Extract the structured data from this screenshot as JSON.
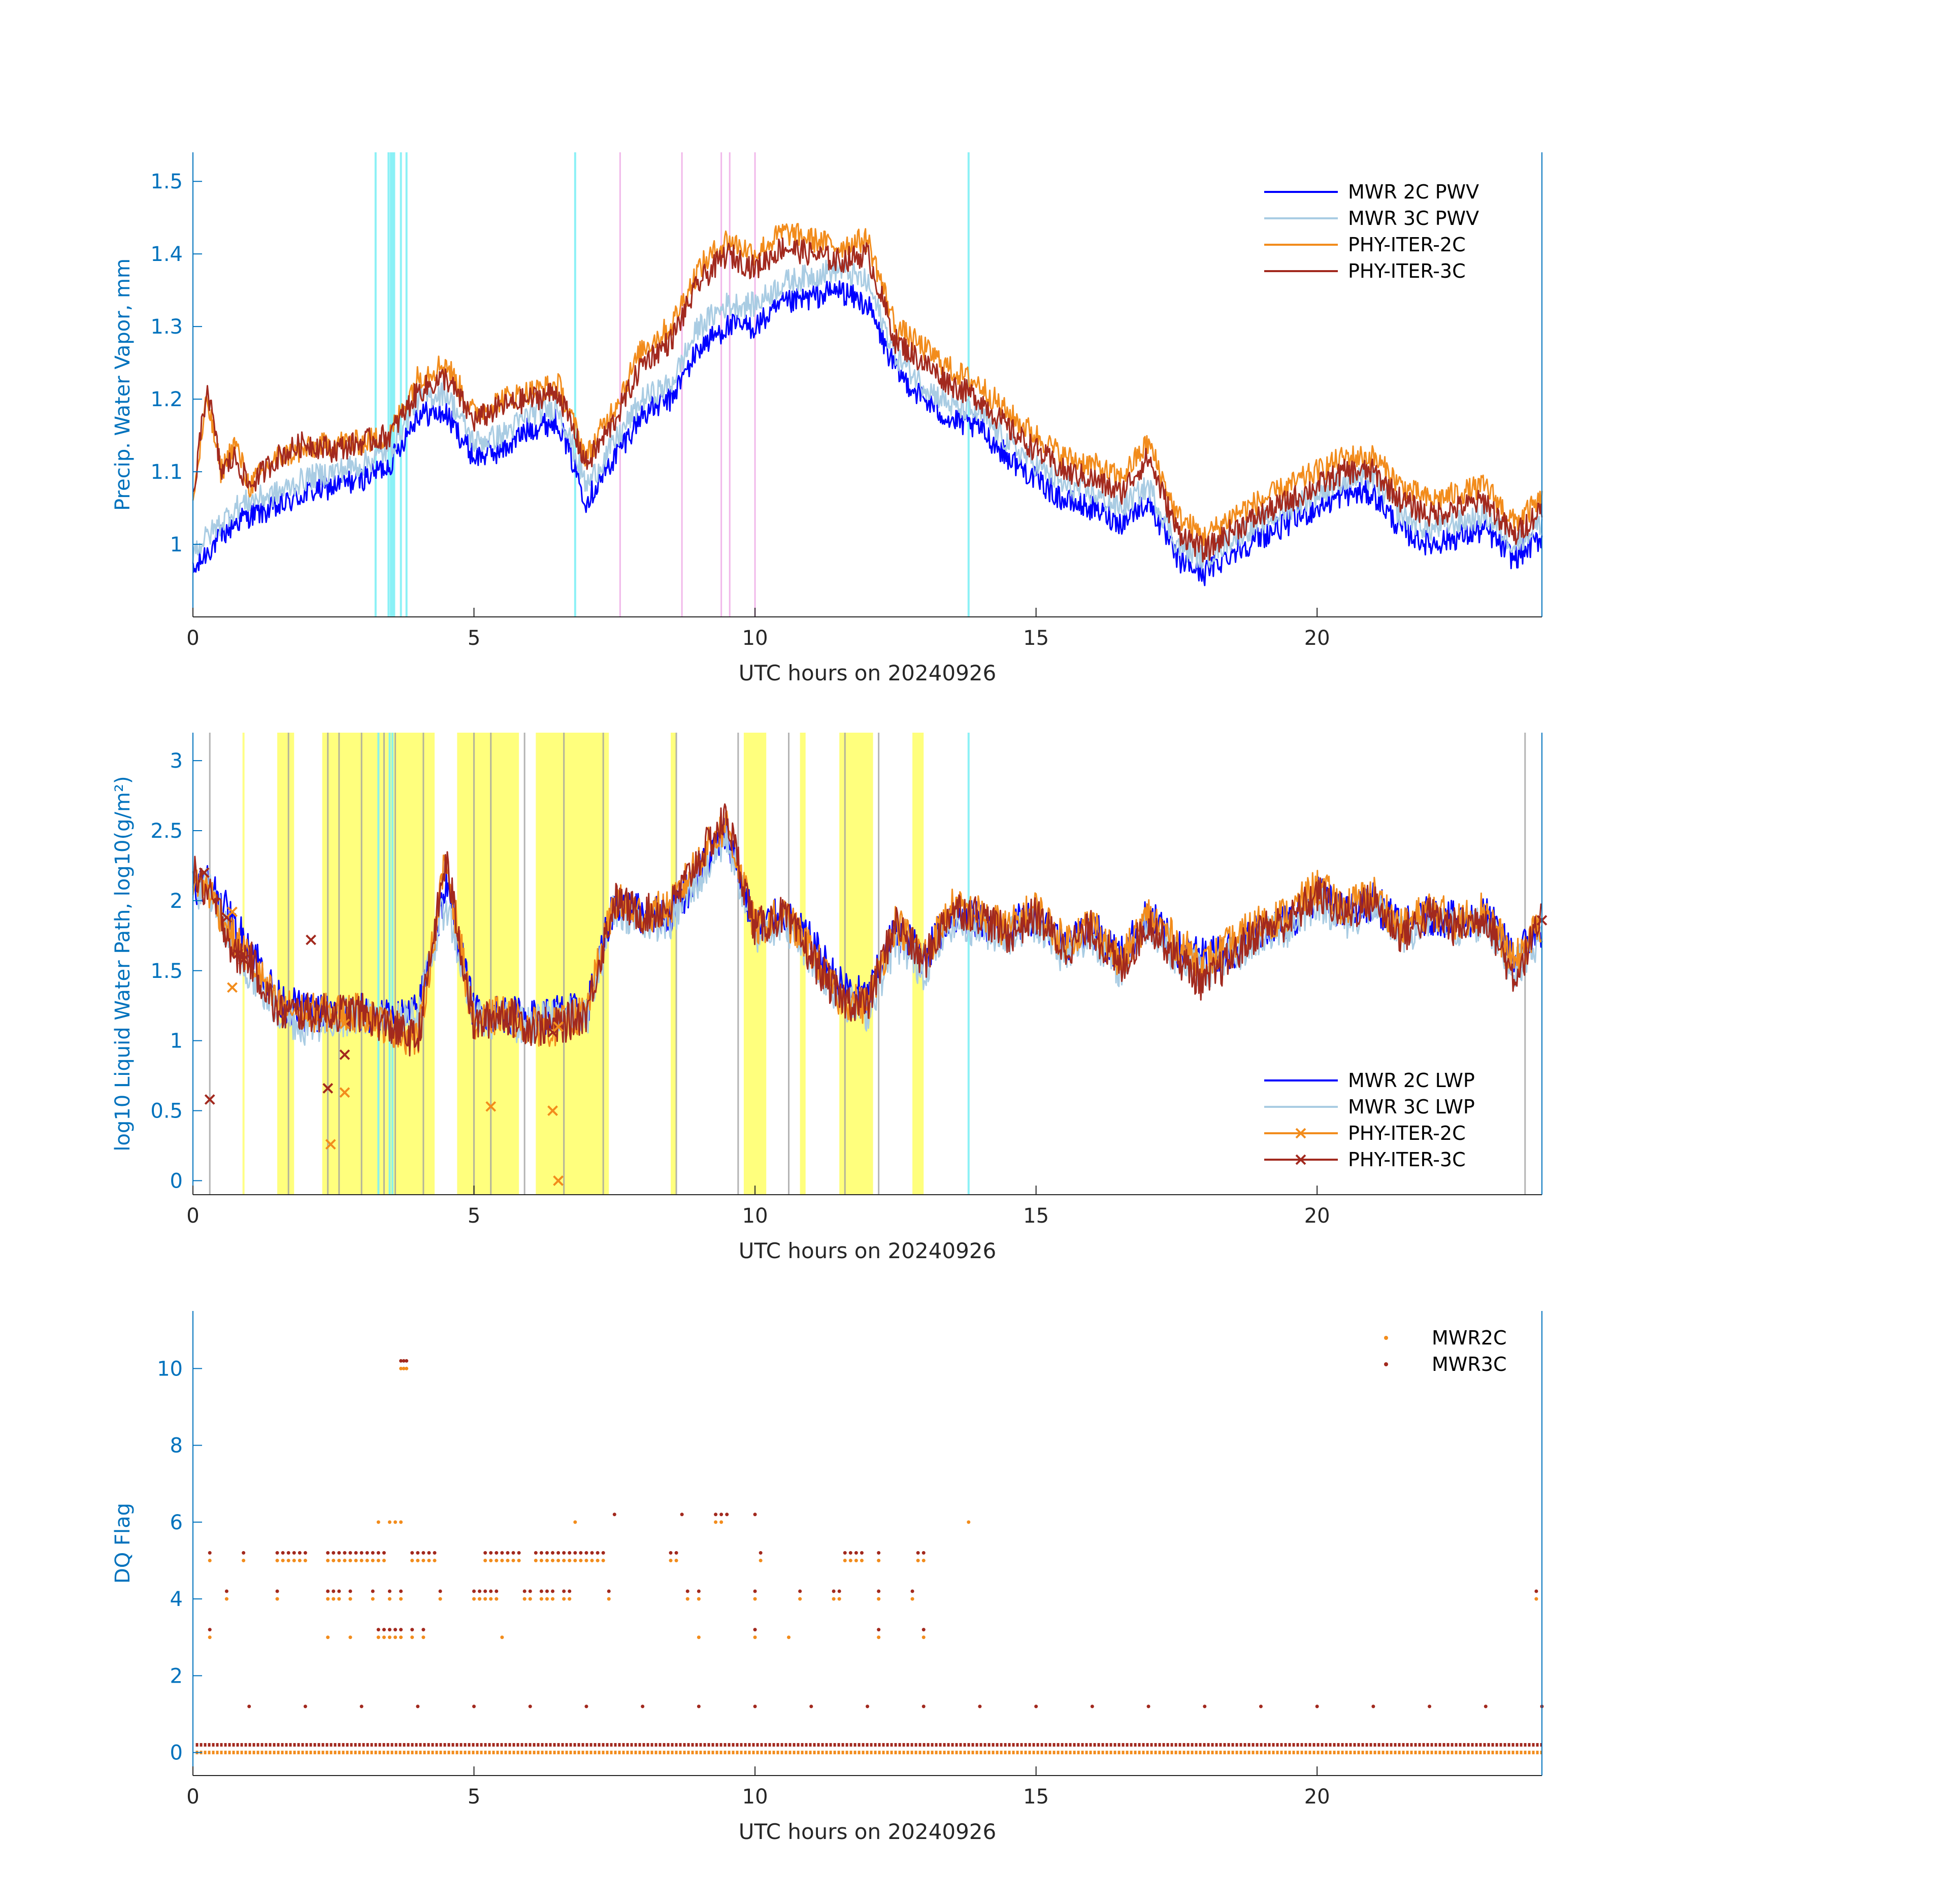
{
  "chart_data": [
    {
      "type": "line",
      "id": "pwv",
      "xlabel": "UTC hours on 20240926",
      "ylabel": "Precip. Water Vapor, mm",
      "xlim": [
        0,
        24
      ],
      "ylim": [
        0.9,
        1.54
      ],
      "xticks": [
        0,
        5,
        10,
        15,
        20
      ],
      "yticks": [
        1,
        1.1,
        1.2,
        1.3,
        1.4,
        1.5
      ],
      "ytick_labels": [
        "1",
        "1.1",
        "1.2",
        "1.3",
        "1.4",
        "1.5"
      ],
      "legend_location": "top-right",
      "x": [
        0,
        0.25,
        0.5,
        0.75,
        1,
        1.5,
        2,
        2.5,
        3,
        3.5,
        4,
        4.5,
        5,
        5.5,
        6,
        6.5,
        7,
        7.5,
        8,
        8.5,
        9,
        9.5,
        10,
        10.5,
        11,
        11.5,
        12,
        12.5,
        13,
        13.5,
        14,
        14.5,
        15,
        15.5,
        16,
        16.5,
        17,
        17.5,
        18,
        18.5,
        19,
        19.5,
        20,
        20.5,
        21,
        21.5,
        22,
        22.5,
        23,
        23.5,
        24
      ],
      "series": [
        {
          "name": "MWR 2C PWV",
          "color": "#0000FF",
          "width": 3,
          "values": [
            0.96,
            0.99,
            1.01,
            1.03,
            1.04,
            1.05,
            1.07,
            1.08,
            1.09,
            1.11,
            1.18,
            1.18,
            1.12,
            1.13,
            1.16,
            1.17,
            1.06,
            1.12,
            1.18,
            1.2,
            1.27,
            1.3,
            1.3,
            1.33,
            1.34,
            1.35,
            1.33,
            1.24,
            1.2,
            1.17,
            1.16,
            1.12,
            1.09,
            1.06,
            1.05,
            1.03,
            1.06,
            0.98,
            0.96,
            0.99,
            1.01,
            1.03,
            1.05,
            1.07,
            1.07,
            1.02,
            1.0,
            1.01,
            1.02,
            0.98,
            1.01
          ]
        },
        {
          "name": "MWR 3C PWV",
          "color": "#A9CCE3",
          "width": 3,
          "values": [
            0.99,
            1.01,
            1.03,
            1.05,
            1.06,
            1.07,
            1.09,
            1.1,
            1.11,
            1.13,
            1.2,
            1.21,
            1.14,
            1.15,
            1.18,
            1.19,
            1.08,
            1.14,
            1.2,
            1.22,
            1.3,
            1.33,
            1.33,
            1.36,
            1.37,
            1.38,
            1.36,
            1.26,
            1.22,
            1.19,
            1.18,
            1.14,
            1.11,
            1.08,
            1.07,
            1.05,
            1.08,
            1.0,
            0.98,
            1.01,
            1.03,
            1.05,
            1.07,
            1.09,
            1.09,
            1.04,
            1.02,
            1.03,
            1.04,
            1.0,
            1.03
          ]
        },
        {
          "name": "PHY-ITER-2C",
          "color": "#F28C1C",
          "width": 3,
          "values": [
            1.06,
            1.2,
            1.1,
            1.14,
            1.08,
            1.12,
            1.13,
            1.14,
            1.14,
            1.15,
            1.23,
            1.25,
            1.18,
            1.2,
            1.21,
            1.22,
            1.12,
            1.19,
            1.27,
            1.3,
            1.38,
            1.42,
            1.4,
            1.43,
            1.42,
            1.41,
            1.42,
            1.3,
            1.27,
            1.24,
            1.22,
            1.18,
            1.15,
            1.12,
            1.11,
            1.09,
            1.14,
            1.04,
            1.01,
            1.04,
            1.06,
            1.08,
            1.1,
            1.12,
            1.12,
            1.08,
            1.06,
            1.07,
            1.08,
            1.03,
            1.06
          ]
        },
        {
          "name": "PHY-ITER-3C",
          "color": "#A2291E",
          "width": 3,
          "values": [
            1.06,
            1.22,
            1.1,
            1.12,
            1.08,
            1.12,
            1.14,
            1.13,
            1.14,
            1.15,
            1.21,
            1.23,
            1.17,
            1.19,
            1.2,
            1.21,
            1.11,
            1.17,
            1.25,
            1.28,
            1.36,
            1.4,
            1.38,
            1.41,
            1.4,
            1.39,
            1.4,
            1.28,
            1.25,
            1.22,
            1.2,
            1.16,
            1.13,
            1.1,
            1.09,
            1.07,
            1.12,
            1.02,
            0.99,
            1.02,
            1.04,
            1.06,
            1.08,
            1.1,
            1.1,
            1.06,
            1.04,
            1.05,
            1.06,
            1.01,
            1.05
          ]
        }
      ]
    },
    {
      "type": "line",
      "id": "lwp",
      "xlabel": "UTC hours on 20240926",
      "ylabel": "log10 Liquid Water Path, log10(g/m²)",
      "xlim": [
        0,
        24
      ],
      "ylim": [
        -0.1,
        3.2
      ],
      "xticks": [
        0,
        5,
        10,
        15,
        20
      ],
      "yticks": [
        0,
        0.5,
        1,
        1.5,
        2,
        2.5,
        3
      ],
      "ytick_labels": [
        "0",
        "0.5",
        "1",
        "1.5",
        "2",
        "2.5",
        "3"
      ],
      "legend_location": "bottom-right",
      "x": [
        0,
        0.25,
        0.5,
        0.75,
        1,
        1.5,
        2,
        2.5,
        3,
        3.5,
        4,
        4.5,
        5,
        5.5,
        6,
        6.5,
        7,
        7.5,
        8,
        8.5,
        9,
        9.5,
        10,
        10.5,
        11,
        11.5,
        12,
        12.5,
        13,
        13.5,
        14,
        14.5,
        15,
        15.5,
        16,
        16.5,
        17,
        17.5,
        18,
        18.5,
        19,
        19.5,
        20,
        20.5,
        21,
        21.5,
        22,
        22.5,
        23,
        23.5,
        24
      ],
      "series": [
        {
          "name": "MWR 2C LWP",
          "color": "#0000FF",
          "width": 3,
          "marker": "",
          "values": [
            2.1,
            2.15,
            2.0,
            1.8,
            1.7,
            1.3,
            1.2,
            1.2,
            1.2,
            1.15,
            1.2,
            2.1,
            1.2,
            1.2,
            1.15,
            1.2,
            1.2,
            2.0,
            1.9,
            1.9,
            2.2,
            2.5,
            1.8,
            1.9,
            1.7,
            1.4,
            1.3,
            1.8,
            1.6,
            1.9,
            1.85,
            1.8,
            1.9,
            1.7,
            1.8,
            1.6,
            1.9,
            1.65,
            1.6,
            1.65,
            1.8,
            1.85,
            2.05,
            1.9,
            2.0,
            1.8,
            1.9,
            1.85,
            1.9,
            1.6,
            1.8
          ]
        },
        {
          "name": "MWR 3C LWP",
          "color": "#A9CCE3",
          "width": 3,
          "marker": "",
          "values": [
            2.05,
            2.1,
            1.9,
            1.6,
            1.5,
            1.2,
            1.1,
            1.15,
            1.2,
            1.1,
            1.2,
            2.0,
            1.15,
            1.15,
            1.1,
            1.2,
            1.15,
            1.95,
            1.85,
            1.85,
            2.15,
            2.45,
            1.75,
            1.85,
            1.6,
            1.3,
            1.2,
            1.7,
            1.5,
            1.85,
            1.8,
            1.75,
            1.85,
            1.6,
            1.75,
            1.5,
            1.85,
            1.6,
            1.5,
            1.6,
            1.75,
            1.8,
            2.0,
            1.85,
            1.95,
            1.75,
            1.85,
            1.8,
            1.85,
            1.5,
            1.75
          ]
        },
        {
          "name": "PHY-ITER-2C",
          "color": "#F28C1C",
          "width": 3,
          "marker": "x",
          "values": [
            2.15,
            2.1,
            1.9,
            1.7,
            1.6,
            1.25,
            1.2,
            1.2,
            1.2,
            1.1,
            1.0,
            2.3,
            1.1,
            1.2,
            1.1,
            1.1,
            1.2,
            2.0,
            1.9,
            1.95,
            2.3,
            2.55,
            1.8,
            1.9,
            1.65,
            1.3,
            1.25,
            1.85,
            1.6,
            1.95,
            1.9,
            1.8,
            1.95,
            1.7,
            1.85,
            1.55,
            1.9,
            1.7,
            1.55,
            1.7,
            1.85,
            1.9,
            2.1,
            1.95,
            2.05,
            1.8,
            1.95,
            1.85,
            1.95,
            1.55,
            1.85
          ]
        },
        {
          "name": "PHY-ITER-3C",
          "color": "#A2291E",
          "width": 3,
          "marker": "x",
          "values": [
            2.2,
            2.05,
            1.9,
            1.6,
            1.6,
            1.2,
            1.2,
            1.2,
            1.2,
            1.1,
            1.0,
            2.3,
            1.1,
            1.2,
            1.1,
            1.1,
            1.2,
            2.0,
            1.9,
            1.95,
            2.3,
            2.6,
            1.8,
            1.9,
            1.6,
            1.3,
            1.25,
            1.85,
            1.55,
            1.95,
            1.9,
            1.75,
            1.9,
            1.65,
            1.8,
            1.5,
            1.85,
            1.6,
            1.4,
            1.6,
            1.8,
            1.85,
            2.05,
            1.9,
            2.0,
            1.75,
            1.9,
            1.8,
            1.9,
            1.45,
            1.85
          ]
        }
      ]
    },
    {
      "type": "scatter",
      "id": "dq",
      "xlabel": "UTC hours on 20240926",
      "ylabel": "DQ Flag",
      "xlim": [
        0,
        24
      ],
      "ylim": [
        -0.6,
        11.5
      ],
      "xticks": [
        0,
        5,
        10,
        15,
        20
      ],
      "yticks": [
        0,
        2,
        4,
        6,
        8,
        10
      ],
      "ytick_labels": [
        "0",
        "2",
        "4",
        "6",
        "8",
        "10"
      ],
      "legend_location": "top-right",
      "series": [
        {
          "name": "MWR2C",
          "color": "#F28C1C",
          "y_offset": 0,
          "flag_levels": [
            {
              "y": 5,
              "x": [
                0.3,
                0.9,
                1.5,
                1.6,
                1.7,
                1.8,
                1.9,
                2.0,
                2.4,
                2.5,
                2.6,
                2.7,
                2.8,
                2.9,
                3.0,
                3.1,
                3.2,
                3.3,
                3.4,
                3.9,
                4.0,
                4.1,
                4.2,
                4.3,
                5.2,
                5.3,
                5.4,
                5.5,
                5.6,
                5.7,
                5.8,
                6.1,
                6.2,
                6.3,
                6.4,
                6.5,
                6.6,
                6.7,
                6.8,
                6.9,
                7.0,
                7.1,
                7.2,
                7.3,
                8.5,
                8.6,
                10.1,
                11.6,
                11.7,
                11.8,
                11.9,
                12.2,
                12.9,
                13.0
              ]
            },
            {
              "y": 4,
              "x": [
                0.6,
                1.5,
                2.4,
                2.5,
                2.6,
                2.8,
                3.2,
                3.5,
                3.7,
                4.4,
                5.0,
                5.1,
                5.2,
                5.3,
                5.4,
                5.9,
                6.0,
                6.2,
                6.3,
                6.4,
                6.6,
                6.7,
                7.4,
                8.8,
                9.0,
                10.0,
                10.8,
                11.4,
                11.5,
                12.2,
                12.8
              ]
            },
            {
              "y": 3,
              "x": [
                0.3,
                2.4,
                2.8,
                3.3,
                3.4,
                3.5,
                3.6,
                3.7,
                3.9,
                4.1,
                5.5,
                9.0,
                10.0,
                10.6,
                12.2,
                13.0
              ]
            },
            {
              "y": 6,
              "x": [
                3.3,
                3.5,
                3.6,
                3.7,
                6.8,
                9.3,
                9.4,
                13.8
              ]
            },
            {
              "y": 10,
              "x": [
                3.7,
                3.75,
                3.8
              ]
            },
            {
              "y": 4,
              "x": [
                23.9
              ]
            },
            {
              "y": 0,
              "x_ranges": [
                [
                  0.05,
                  24
                ]
              ]
            }
          ]
        },
        {
          "name": "MWR3C",
          "color": "#A2291E",
          "y_offset": 0.2,
          "flag_levels": [
            {
              "y": 5,
              "x": [
                0.3,
                0.9,
                1.5,
                1.6,
                1.7,
                1.8,
                1.9,
                2.0,
                2.4,
                2.5,
                2.6,
                2.7,
                2.8,
                2.9,
                3.0,
                3.1,
                3.2,
                3.3,
                3.4,
                3.9,
                4.0,
                4.1,
                4.2,
                4.3,
                5.2,
                5.3,
                5.4,
                5.5,
                5.6,
                5.7,
                5.8,
                6.1,
                6.2,
                6.3,
                6.4,
                6.5,
                6.6,
                6.7,
                6.8,
                6.9,
                7.0,
                7.1,
                7.2,
                7.3,
                8.5,
                8.6,
                10.1,
                11.6,
                11.7,
                11.8,
                11.9,
                12.2,
                12.9,
                13.0
              ]
            },
            {
              "y": 4,
              "x": [
                0.6,
                1.5,
                2.4,
                2.5,
                2.6,
                2.8,
                3.2,
                3.5,
                3.7,
                4.4,
                5.0,
                5.1,
                5.2,
                5.3,
                5.4,
                5.9,
                6.0,
                6.2,
                6.3,
                6.4,
                6.6,
                6.7,
                7.4,
                8.8,
                9.0,
                10.0,
                10.8,
                11.4,
                11.5,
                12.2,
                12.8
              ]
            },
            {
              "y": 3,
              "x": [
                0.3,
                3.3,
                3.4,
                3.5,
                3.6,
                3.7,
                3.9,
                4.1,
                10.0,
                12.2,
                13.0
              ]
            },
            {
              "y": 6,
              "x": [
                7.5,
                8.7,
                9.3,
                9.4,
                9.5,
                10.0
              ]
            },
            {
              "y": 10,
              "x": [
                3.7,
                3.75,
                3.8
              ]
            },
            {
              "y": 1,
              "x": [
                1,
                2,
                3,
                4,
                5,
                6,
                7,
                8,
                9,
                10,
                11,
                12,
                13,
                14,
                15,
                16,
                17,
                18,
                19,
                20,
                21,
                22,
                23,
                24
              ]
            },
            {
              "y": 4,
              "x": [
                23.9
              ]
            },
            {
              "y": 0,
              "x_ranges": [
                [
                  0.05,
                  24
                ]
              ]
            }
          ]
        }
      ]
    }
  ],
  "shading": {
    "pwv_cyan_lines": [
      3.25,
      3.48,
      3.52,
      3.55,
      3.58,
      3.7,
      3.8,
      6.8,
      13.8
    ],
    "pwv_magenta_lines": [
      7.6,
      8.7,
      9.4,
      9.55,
      10.0
    ],
    "lwp_yellow_spans": [
      [
        1.5,
        1.8
      ],
      [
        2.3,
        4.3
      ],
      [
        4.7,
        5.8
      ],
      [
        6.1,
        7.4
      ],
      [
        8.5,
        8.6
      ],
      [
        9.8,
        10.2
      ],
      [
        10.8,
        10.9
      ],
      [
        11.5,
        12.1
      ],
      [
        12.8,
        13.0
      ]
    ],
    "lwp_gray_lines": [
      0.3,
      1.7,
      2.4,
      2.6,
      3.0,
      3.4,
      3.6,
      4.1,
      5.0,
      5.3,
      5.9,
      6.6,
      7.3,
      8.6,
      9.7,
      10.6,
      11.6,
      12.2,
      23.7
    ],
    "lwp_cyan_lines": [
      3.3,
      3.5,
      3.55,
      13.8
    ],
    "lwp_yellow_light_lines": [
      0.9
    ]
  },
  "colors": {
    "axis": "#262626",
    "ylabel": "#0072BD",
    "shade_yellow": "#FFFF66",
    "shade_gray": "#A0A0A0",
    "shade_cyan": "#7FF0F5",
    "shade_magenta": "#F0B0E8"
  }
}
